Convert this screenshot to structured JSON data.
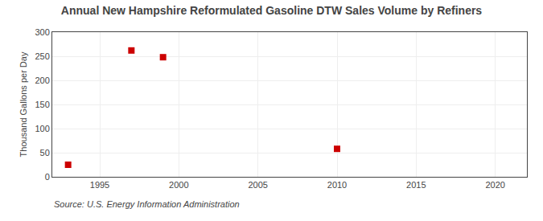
{
  "chart_data": {
    "type": "scatter",
    "title": "Annual New Hampshire Reformulated Gasoline DTW Sales Volume by Refiners",
    "ylabel": "Thousand Gallons per Day",
    "annotations": [
      "Source: U.S. Energy Information Administration"
    ],
    "x": [
      1993,
      1997,
      1999,
      2010
    ],
    "values": [
      25,
      262,
      248,
      58
    ],
    "color": "#cc0000",
    "marker": "square",
    "xlim": [
      1992,
      2022
    ],
    "ylim": [
      0,
      300
    ],
    "xticks": [
      1995,
      2000,
      2005,
      2010,
      2015,
      2020
    ],
    "yticks": [
      0,
      50,
      100,
      150,
      200,
      250,
      300
    ],
    "grid": true
  }
}
